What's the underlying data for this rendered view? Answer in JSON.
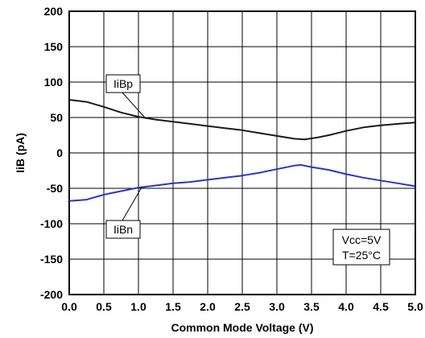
{
  "chart_data": {
    "type": "line",
    "xlabel": "Common Mode Voltage (V)",
    "ylabel": "IiB (pA)",
    "xlim": [
      0,
      5
    ],
    "ylim": [
      -200,
      200
    ],
    "x_ticks": [
      0.0,
      0.5,
      1.0,
      1.5,
      2.0,
      2.5,
      3.0,
      3.5,
      4.0,
      4.5,
      5.0
    ],
    "x_tick_labels": [
      "0.0",
      "0.5",
      "1.0",
      "1.5",
      "2.0",
      "2.5",
      "3.0",
      "3.5",
      "4.0",
      "4.5",
      "5.0"
    ],
    "y_ticks": [
      200,
      150,
      100,
      50,
      0,
      -50,
      -100,
      -150,
      -200
    ],
    "y_tick_labels": [
      "200",
      "150",
      "100",
      "50",
      "0",
      "-50",
      "-100",
      "-150",
      "-200"
    ],
    "grid": true,
    "series": [
      {
        "name": "IiBp",
        "color": "#1a1a1a",
        "x": [
          0.0,
          0.25,
          0.5,
          0.75,
          1.0,
          1.25,
          1.5,
          1.75,
          2.0,
          2.25,
          2.5,
          2.75,
          3.0,
          3.25,
          3.4,
          3.6,
          3.75,
          4.0,
          4.25,
          4.5,
          4.75,
          5.0
        ],
        "y": [
          75,
          72,
          65,
          57,
          51,
          47,
          44,
          41,
          38,
          35,
          32,
          28,
          24,
          20,
          19,
          22,
          25,
          31,
          36,
          39,
          41,
          43
        ]
      },
      {
        "name": "IiBn",
        "color": "#2b35c9",
        "x": [
          0.0,
          0.25,
          0.5,
          0.75,
          1.0,
          1.25,
          1.5,
          1.75,
          2.0,
          2.25,
          2.5,
          2.75,
          3.0,
          3.25,
          3.35,
          3.5,
          3.75,
          4.0,
          4.25,
          4.5,
          4.75,
          5.0
        ],
        "y": [
          -68,
          -66,
          -59,
          -54,
          -49,
          -46,
          -43,
          -41,
          -38,
          -35,
          -32,
          -28,
          -23,
          -18,
          -17,
          -20,
          -24,
          -30,
          -35,
          -39,
          -43,
          -47
        ]
      }
    ],
    "annotations": [
      {
        "text": "IiBp",
        "series": "IiBp"
      },
      {
        "text": "IiBn",
        "series": "IiBn"
      },
      {
        "text": "Vcc=5V",
        "line": 1
      },
      {
        "text": "T=25°C",
        "line": 2
      }
    ]
  }
}
